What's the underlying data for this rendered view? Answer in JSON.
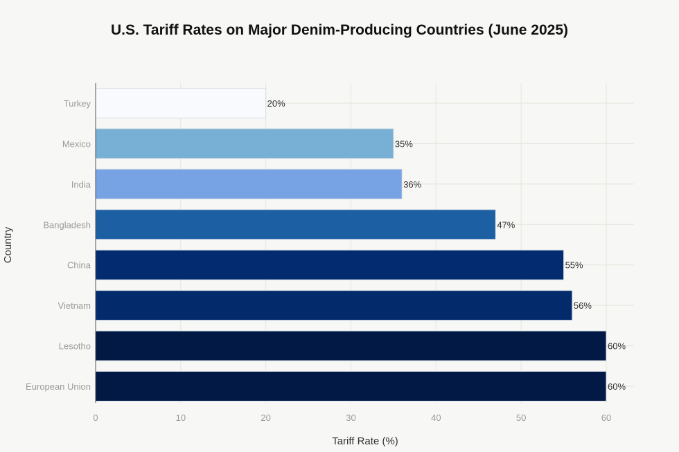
{
  "chart_data": {
    "type": "bar",
    "orientation": "horizontal",
    "title": "U.S. Tariff Rates on Major Denim-Producing Countries (June 2025)",
    "xlabel": "Tariff Rate (%)",
    "ylabel": "Country",
    "xlim": [
      0,
      63
    ],
    "xticks": [
      0,
      10,
      20,
      30,
      40,
      50,
      60
    ],
    "grid": true,
    "categories": [
      "Turkey",
      "Mexico",
      "India",
      "Bangladesh",
      "China",
      "Vietnam",
      "Lesotho",
      "European Union"
    ],
    "values": [
      20,
      35,
      36,
      47,
      55,
      56,
      60,
      60
    ],
    "data_labels": [
      "20%",
      "35%",
      "36%",
      "47%",
      "55%",
      "56%",
      "60%",
      "60%"
    ],
    "colors": [
      "#f8fafd",
      "#77b0d4",
      "#77a3e5",
      "#1c5fa3",
      "#022b70",
      "#032a6b",
      "#021845",
      "#021845"
    ]
  }
}
